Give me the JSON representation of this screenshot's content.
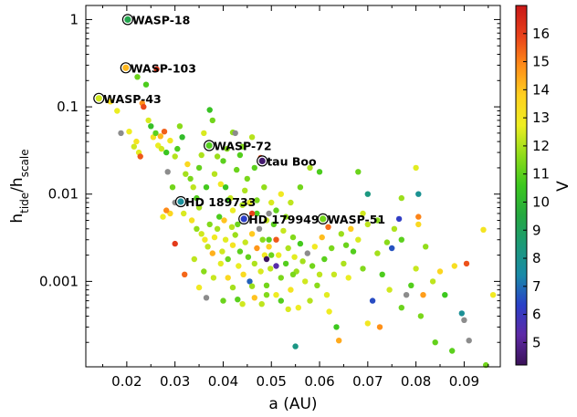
{
  "chart_data": {
    "type": "scatter",
    "xlabel": "a (AU)",
    "ylabel_main": "h",
    "ylabel_sub1": "tide",
    "ylabel_sep": "/h",
    "ylabel_sub2": "scale",
    "xlim": [
      0.0115,
      0.0975
    ],
    "ylim": [
      0.000105,
      1.45
    ],
    "yscale": "log",
    "x_ticks": [
      0.02,
      0.03,
      0.04,
      0.05,
      0.06,
      0.07,
      0.08,
      0.09
    ],
    "x_tick_labels": [
      "0.02",
      "0.03",
      "0.04",
      "0.05",
      "0.06",
      "0.07",
      "0.08",
      "0.09"
    ],
    "y_ticks": [
      0.001,
      0.01,
      0.1,
      1
    ],
    "y_tick_labels": [
      "0.001",
      "0.01",
      "0.1",
      "1"
    ],
    "colorbar": {
      "label": "V",
      "range": [
        4.2,
        17.0
      ],
      "ticks": [
        5,
        6,
        7,
        8,
        9,
        10,
        11,
        12,
        13,
        14,
        15,
        16
      ],
      "tick_labels": [
        "5",
        "6",
        "7",
        "8",
        "9",
        "10",
        "11",
        "12",
        "13",
        "14",
        "15",
        "16"
      ],
      "colormap": [
        "#3a1258",
        "#5e2aa6",
        "#2a40c8",
        "#1a8aa8",
        "#1c9a78",
        "#25a840",
        "#3cc81e",
        "#8fdc1a",
        "#eeee22",
        "#ffd020",
        "#ff8c18",
        "#e8401a",
        "#c81818"
      ]
    },
    "gray_color": "#8c8c8c",
    "highlighted": [
      {
        "label": "WASP-18",
        "x": 0.0202,
        "y": 1.0,
        "v": 9.3
      },
      {
        "label": "WASP-103",
        "x": 0.0198,
        "y": 0.28,
        "v": 14.2
      },
      {
        "label": "WASP-43",
        "x": 0.0142,
        "y": 0.125,
        "v": 12.4
      },
      {
        "label": "WASP-72",
        "x": 0.0371,
        "y": 0.036,
        "v": 10.9
      },
      {
        "label": "tau Boo",
        "x": 0.0481,
        "y": 0.024,
        "v": 4.5
      },
      {
        "label": "HD 189733",
        "x": 0.0312,
        "y": 0.0082,
        "v": 7.7
      },
      {
        "label": "HD 179949",
        "x": 0.0443,
        "y": 0.0052,
        "v": 6.3
      },
      {
        "label": "WASP-51",
        "x": 0.0607,
        "y": 0.0052,
        "v": 11.3
      }
    ],
    "points": [
      {
        "x": 0.0166,
        "y": 0.115,
        "v": 13.3
      },
      {
        "x": 0.018,
        "y": 0.09,
        "v": 12.7
      },
      {
        "x": 0.0188,
        "y": 0.05,
        "v": null
      },
      {
        "x": 0.0205,
        "y": 0.052,
        "v": 12.8
      },
      {
        "x": 0.0215,
        "y": 0.035,
        "v": 12.4
      },
      {
        "x": 0.022,
        "y": 0.04,
        "v": 13.1
      },
      {
        "x": 0.0225,
        "y": 0.03,
        "v": 12.6
      },
      {
        "x": 0.0228,
        "y": 0.027,
        "v": 15.6
      },
      {
        "x": 0.0232,
        "y": 0.11,
        "v": 14.8
      },
      {
        "x": 0.0235,
        "y": 0.1,
        "v": 15.8
      },
      {
        "x": 0.0222,
        "y": 0.22,
        "v": 11.2
      },
      {
        "x": 0.024,
        "y": 0.18,
        "v": 10.8
      },
      {
        "x": 0.0262,
        "y": 0.27,
        "v": 16.2
      },
      {
        "x": 0.0245,
        "y": 0.07,
        "v": 12.5
      },
      {
        "x": 0.025,
        "y": 0.06,
        "v": 10.3
      },
      {
        "x": 0.0255,
        "y": 0.045,
        "v": 13.2
      },
      {
        "x": 0.026,
        "y": 0.05,
        "v": 11.0
      },
      {
        "x": 0.0265,
        "y": 0.036,
        "v": 12.7
      },
      {
        "x": 0.027,
        "y": 0.046,
        "v": 14.2
      },
      {
        "x": 0.0272,
        "y": 0.033,
        "v": 12.4
      },
      {
        "x": 0.0278,
        "y": 0.052,
        "v": 15.5
      },
      {
        "x": 0.0282,
        "y": 0.03,
        "v": 10.5
      },
      {
        "x": 0.0285,
        "y": 0.018,
        "v": null
      },
      {
        "x": 0.029,
        "y": 0.041,
        "v": 12.9
      },
      {
        "x": 0.0295,
        "y": 0.012,
        "v": 11.3
      },
      {
        "x": 0.03,
        "y": 0.027,
        "v": 12.1
      },
      {
        "x": 0.0305,
        "y": 0.033,
        "v": 10.8
      },
      {
        "x": 0.031,
        "y": 0.06,
        "v": 11.6
      },
      {
        "x": 0.0315,
        "y": 0.045,
        "v": 10.2
      },
      {
        "x": 0.0322,
        "y": 0.017,
        "v": 11.9
      },
      {
        "x": 0.0326,
        "y": 0.022,
        "v": 13.5
      },
      {
        "x": 0.0332,
        "y": 0.015,
        "v": 11.4
      },
      {
        "x": 0.0338,
        "y": 0.012,
        "v": 12.2
      },
      {
        "x": 0.0345,
        "y": 0.009,
        "v": 10.9
      },
      {
        "x": 0.035,
        "y": 0.02,
        "v": 11.1
      },
      {
        "x": 0.0355,
        "y": 0.028,
        "v": 12.0
      },
      {
        "x": 0.036,
        "y": 0.05,
        "v": 12.5
      },
      {
        "x": 0.0365,
        "y": 0.012,
        "v": 10.7
      },
      {
        "x": 0.0372,
        "y": 0.092,
        "v": 10.4
      },
      {
        "x": 0.0378,
        "y": 0.07,
        "v": 11.3
      },
      {
        "x": 0.0382,
        "y": 0.017,
        "v": 12.1
      },
      {
        "x": 0.0388,
        "y": 0.027,
        "v": 11.8
      },
      {
        "x": 0.0395,
        "y": 0.013,
        "v": 12.9
      },
      {
        "x": 0.04,
        "y": 0.024,
        "v": 11.0
      },
      {
        "x": 0.0405,
        "y": 0.012,
        "v": 10.5
      },
      {
        "x": 0.0408,
        "y": 0.033,
        "v": 11.5
      },
      {
        "x": 0.0415,
        "y": 0.009,
        "v": 12.3
      },
      {
        "x": 0.042,
        "y": 0.051,
        "v": 11.7
      },
      {
        "x": 0.0425,
        "y": 0.05,
        "v": null
      },
      {
        "x": 0.0428,
        "y": 0.019,
        "v": 11.2
      },
      {
        "x": 0.0435,
        "y": 0.028,
        "v": 10.9
      },
      {
        "x": 0.044,
        "y": 0.035,
        "v": 11.5
      },
      {
        "x": 0.0445,
        "y": 0.011,
        "v": 12.0
      },
      {
        "x": 0.045,
        "y": 0.015,
        "v": 11.4
      },
      {
        "x": 0.0455,
        "y": 0.008,
        "v": 12.6
      },
      {
        "x": 0.046,
        "y": 0.045,
        "v": 12.1
      },
      {
        "x": 0.0465,
        "y": 0.02,
        "v": 11.0
      },
      {
        "x": 0.047,
        "y": 0.006,
        "v": 10.8
      },
      {
        "x": 0.0478,
        "y": 0.026,
        "v": 15.8
      },
      {
        "x": 0.0485,
        "y": 0.012,
        "v": 11.7
      },
      {
        "x": 0.049,
        "y": 0.005,
        "v": 12.3
      },
      {
        "x": 0.0495,
        "y": 0.003,
        "v": 11.0
      },
      {
        "x": 0.03,
        "y": 0.008,
        "v": null
      },
      {
        "x": 0.029,
        "y": 0.006,
        "v": 13.6
      },
      {
        "x": 0.0282,
        "y": 0.0065,
        "v": 14.9
      },
      {
        "x": 0.0275,
        "y": 0.0055,
        "v": 12.8
      },
      {
        "x": 0.0318,
        "y": 0.006,
        "v": 12.5
      },
      {
        "x": 0.0335,
        "y": 0.005,
        "v": 13.2
      },
      {
        "x": 0.0345,
        "y": 0.004,
        "v": 11.7
      },
      {
        "x": 0.035,
        "y": 0.007,
        "v": 11.9
      },
      {
        "x": 0.0355,
        "y": 0.0035,
        "v": 12.4
      },
      {
        "x": 0.0362,
        "y": 0.003,
        "v": 13.0
      },
      {
        "x": 0.0368,
        "y": 0.0025,
        "v": 12.2
      },
      {
        "x": 0.0372,
        "y": 0.0045,
        "v": 11.5
      },
      {
        "x": 0.0378,
        "y": 0.0021,
        "v": 14.3
      },
      {
        "x": 0.0382,
        "y": 0.0032,
        "v": 12.9
      },
      {
        "x": 0.0388,
        "y": 0.004,
        "v": 11.9
      },
      {
        "x": 0.0392,
        "y": 0.0055,
        "v": 10.8
      },
      {
        "x": 0.0398,
        "y": 0.0022,
        "v": 12.4
      },
      {
        "x": 0.0402,
        "y": 0.005,
        "v": 14.0
      },
      {
        "x": 0.0405,
        "y": 0.003,
        "v": 12.6
      },
      {
        "x": 0.041,
        "y": 0.0018,
        "v": 11.2
      },
      {
        "x": 0.0418,
        "y": 0.0042,
        "v": 12.1
      },
      {
        "x": 0.042,
        "y": 0.0026,
        "v": 13.1
      },
      {
        "x": 0.0425,
        "y": 0.0034,
        "v": 11.8
      },
      {
        "x": 0.0432,
        "y": 0.0015,
        "v": 12.7
      },
      {
        "x": 0.0435,
        "y": 0.0022,
        "v": 11.0
      },
      {
        "x": 0.0442,
        "y": 0.0012,
        "v": 13.4
      },
      {
        "x": 0.0446,
        "y": 0.0028,
        "v": 12.3
      },
      {
        "x": 0.0452,
        "y": 0.0019,
        "v": 11.1
      },
      {
        "x": 0.0455,
        "y": 0.001,
        "v": 6.8
      },
      {
        "x": 0.046,
        "y": 0.0035,
        "v": 13.9
      },
      {
        "x": 0.0465,
        "y": 0.0016,
        "v": 12.0
      },
      {
        "x": 0.047,
        "y": 0.0024,
        "v": 14.7
      },
      {
        "x": 0.0475,
        "y": 0.004,
        "v": null
      },
      {
        "x": 0.0478,
        "y": 0.0013,
        "v": 12.5
      },
      {
        "x": 0.0482,
        "y": 0.003,
        "v": 11.6
      },
      {
        "x": 0.0486,
        "y": 0.002,
        "v": 12.9
      },
      {
        "x": 0.049,
        "y": 0.0009,
        "v": 11.3
      },
      {
        "x": 0.0495,
        "y": 0.0025,
        "v": 13.8
      },
      {
        "x": 0.0498,
        "y": 0.0014,
        "v": 12.2
      },
      {
        "x": 0.0505,
        "y": 0.0045,
        "v": 11.0
      },
      {
        "x": 0.051,
        "y": 0.003,
        "v": 15.6
      },
      {
        "x": 0.0515,
        "y": 0.002,
        "v": 12.7
      },
      {
        "x": 0.052,
        "y": 0.0011,
        "v": 11.4
      },
      {
        "x": 0.0525,
        "y": 0.0038,
        "v": 12.3
      },
      {
        "x": 0.053,
        "y": 0.0016,
        "v": 10.9
      },
      {
        "x": 0.0535,
        "y": 0.0024,
        "v": 12.0
      },
      {
        "x": 0.054,
        "y": 0.0008,
        "v": 13.1
      },
      {
        "x": 0.0545,
        "y": 0.0032,
        "v": 11.5
      },
      {
        "x": 0.0548,
        "y": 0.0019,
        "v": 12.6
      },
      {
        "x": 0.0552,
        "y": 0.0013,
        "v": 11.8
      },
      {
        "x": 0.0556,
        "y": 0.0005,
        "v": 12.8
      },
      {
        "x": 0.056,
        "y": 0.0027,
        "v": 10.7
      },
      {
        "x": 0.0565,
        "y": 0.0017,
        "v": 11.9
      },
      {
        "x": 0.057,
        "y": 0.001,
        "v": 12.4
      },
      {
        "x": 0.0575,
        "y": 0.0021,
        "v": null
      },
      {
        "x": 0.058,
        "y": 0.0006,
        "v": 12.1
      },
      {
        "x": 0.0585,
        "y": 0.0015,
        "v": 11.3
      },
      {
        "x": 0.059,
        "y": 0.0025,
        "v": 12.9
      },
      {
        "x": 0.0595,
        "y": 0.0009,
        "v": 11.6
      },
      {
        "x": 0.06,
        "y": 0.0012,
        "v": 12.2
      },
      {
        "x": 0.0605,
        "y": 0.0032,
        "v": 14.1
      },
      {
        "x": 0.061,
        "y": 0.0018,
        "v": 11.0
      },
      {
        "x": 0.0615,
        "y": 0.0007,
        "v": 12.6
      },
      {
        "x": 0.0618,
        "y": 0.0042,
        "v": 15.3
      },
      {
        "x": 0.0625,
        "y": 0.0024,
        "v": 11.4
      },
      {
        "x": 0.063,
        "y": 0.0012,
        "v": 12.3
      },
      {
        "x": 0.0635,
        "y": 0.0003,
        "v": 10.6
      },
      {
        "x": 0.064,
        "y": 0.00021,
        "v": 14.4
      },
      {
        "x": 0.0645,
        "y": 0.0035,
        "v": 11.8
      },
      {
        "x": 0.065,
        "y": 0.0016,
        "v": 12.0
      },
      {
        "x": 0.0655,
        "y": 0.0026,
        "v": 11.2
      },
      {
        "x": 0.066,
        "y": 0.0011,
        "v": 12.7
      },
      {
        "x": 0.0665,
        "y": 0.004,
        "v": 13.9
      },
      {
        "x": 0.067,
        "y": 0.0022,
        "v": 10.9
      },
      {
        "x": 0.068,
        "y": 0.003,
        "v": 12.5
      },
      {
        "x": 0.069,
        "y": 0.0014,
        "v": 11.5
      },
      {
        "x": 0.07,
        "y": 0.0045,
        "v": 12.2
      },
      {
        "x": 0.071,
        "y": 0.0006,
        "v": 6.5
      },
      {
        "x": 0.072,
        "y": 0.0021,
        "v": 11.9
      },
      {
        "x": 0.073,
        "y": 0.0012,
        "v": 10.8
      },
      {
        "x": 0.074,
        "y": 0.0028,
        "v": 11.6
      },
      {
        "x": 0.0745,
        "y": 0.0008,
        "v": 12.4
      },
      {
        "x": 0.0755,
        "y": 0.004,
        "v": 12.0
      },
      {
        "x": 0.0765,
        "y": 0.0052,
        "v": 6.2
      },
      {
        "x": 0.077,
        "y": 0.0005,
        "v": 11.2
      },
      {
        "x": 0.078,
        "y": 0.0007,
        "v": null
      },
      {
        "x": 0.079,
        "y": 0.0009,
        "v": 10.9
      },
      {
        "x": 0.08,
        "y": 0.0014,
        "v": 12.3
      },
      {
        "x": 0.0805,
        "y": 0.0055,
        "v": 15.0
      },
      {
        "x": 0.081,
        "y": 0.0004,
        "v": 11.4
      },
      {
        "x": 0.0815,
        "y": 0.0007,
        "v": 14.6
      },
      {
        "x": 0.082,
        "y": 0.0025,
        "v": 11.7
      },
      {
        "x": 0.0835,
        "y": 0.001,
        "v": 12.2
      },
      {
        "x": 0.085,
        "y": 0.0013,
        "v": 13.6
      },
      {
        "x": 0.086,
        "y": 0.0007,
        "v": 10.6
      },
      {
        "x": 0.0875,
        "y": 0.00016,
        "v": 11.0
      },
      {
        "x": 0.088,
        "y": 0.0015,
        "v": 13.3
      },
      {
        "x": 0.0895,
        "y": 0.00043,
        "v": 7.8
      },
      {
        "x": 0.09,
        "y": 0.00036,
        "v": null
      },
      {
        "x": 0.0905,
        "y": 0.0016,
        "v": 15.7
      },
      {
        "x": 0.091,
        "y": 0.00021,
        "v": null
      },
      {
        "x": 0.094,
        "y": 0.0039,
        "v": 13.1
      },
      {
        "x": 0.0945,
        "y": 0.00011,
        "v": 11.3
      },
      {
        "x": 0.096,
        "y": 0.0007,
        "v": 12.9
      },
      {
        "x": 0.055,
        "y": 0.00018,
        "v": 8.2
      },
      {
        "x": 0.062,
        "y": 0.00045,
        "v": 12.8
      },
      {
        "x": 0.07,
        "y": 0.00033,
        "v": 13.0
      },
      {
        "x": 0.0725,
        "y": 0.0003,
        "v": 14.8
      },
      {
        "x": 0.084,
        "y": 0.0002,
        "v": 11.1
      },
      {
        "x": 0.077,
        "y": 0.009,
        "v": 11.8
      },
      {
        "x": 0.0805,
        "y": 0.0045,
        "v": 13.5
      },
      {
        "x": 0.08,
        "y": 0.02,
        "v": 12.6
      },
      {
        "x": 0.0805,
        "y": 0.01,
        "v": 7.9
      },
      {
        "x": 0.077,
        "y": 0.003,
        "v": 11.0
      },
      {
        "x": 0.075,
        "y": 0.0024,
        "v": 6.6
      },
      {
        "x": 0.07,
        "y": 0.01,
        "v": 8.3
      },
      {
        "x": 0.072,
        "y": 0.005,
        "v": 11.6
      },
      {
        "x": 0.069,
        "y": 0.006,
        "v": 12.4
      },
      {
        "x": 0.068,
        "y": 0.018,
        "v": 11.2
      },
      {
        "x": 0.06,
        "y": 0.018,
        "v": 10.8
      },
      {
        "x": 0.058,
        "y": 0.02,
        "v": 12.0
      },
      {
        "x": 0.056,
        "y": 0.012,
        "v": 11.3
      },
      {
        "x": 0.054,
        "y": 0.008,
        "v": 12.2
      },
      {
        "x": 0.053,
        "y": 0.0055,
        "v": 11.7
      },
      {
        "x": 0.052,
        "y": 0.01,
        "v": 12.9
      },
      {
        "x": 0.051,
        "y": 0.0065,
        "v": 11.1
      },
      {
        "x": 0.05,
        "y": 0.008,
        "v": 12.5
      },
      {
        "x": 0.0495,
        "y": 0.006,
        "v": null
      },
      {
        "x": 0.047,
        "y": 0.0085,
        "v": 11.4
      },
      {
        "x": 0.046,
        "y": 0.006,
        "v": 15.9
      },
      {
        "x": 0.044,
        "y": 0.0075,
        "v": 12.0
      },
      {
        "x": 0.043,
        "y": 0.0045,
        "v": 11.2
      },
      {
        "x": 0.042,
        "y": 0.0065,
        "v": 12.7
      },
      {
        "x": 0.041,
        "y": 0.0085,
        "v": 10.6
      },
      {
        "x": 0.03,
        "y": 0.0027,
        "v": 16.1
      },
      {
        "x": 0.032,
        "y": 0.0012,
        "v": 15.4
      },
      {
        "x": 0.034,
        "y": 0.0018,
        "v": 12.2
      },
      {
        "x": 0.035,
        "y": 0.00085,
        "v": 12.9
      },
      {
        "x": 0.036,
        "y": 0.0013,
        "v": 11.6
      },
      {
        "x": 0.0365,
        "y": 0.00065,
        "v": null
      },
      {
        "x": 0.038,
        "y": 0.0011,
        "v": 12.3
      },
      {
        "x": 0.0395,
        "y": 0.0016,
        "v": 12.6
      },
      {
        "x": 0.04,
        "y": 0.0006,
        "v": 11.2
      },
      {
        "x": 0.041,
        "y": 0.0011,
        "v": 13.5
      },
      {
        "x": 0.042,
        "y": 0.00085,
        "v": 11.9
      },
      {
        "x": 0.043,
        "y": 0.00062,
        "v": 11.0
      },
      {
        "x": 0.044,
        "y": 0.00055,
        "v": 12.4
      },
      {
        "x": 0.046,
        "y": 0.00088,
        "v": 11.8
      },
      {
        "x": 0.0465,
        "y": 0.00065,
        "v": 14.0
      },
      {
        "x": 0.048,
        "y": 0.00055,
        "v": 12.2
      },
      {
        "x": 0.049,
        "y": 0.0007,
        "v": 11.5
      },
      {
        "x": 0.051,
        "y": 0.0007,
        "v": 12.8
      },
      {
        "x": 0.052,
        "y": 0.0006,
        "v": 10.9
      },
      {
        "x": 0.0535,
        "y": 0.00048,
        "v": 12.5
      },
      {
        "x": 0.0545,
        "y": 0.0012,
        "v": 11.4
      },
      {
        "x": 0.051,
        "y": 0.0015,
        "v": 5.4
      },
      {
        "x": 0.05,
        "y": 0.002,
        "v": 11.2
      },
      {
        "x": 0.049,
        "y": 0.0018,
        "v": 4.3
      }
    ]
  }
}
